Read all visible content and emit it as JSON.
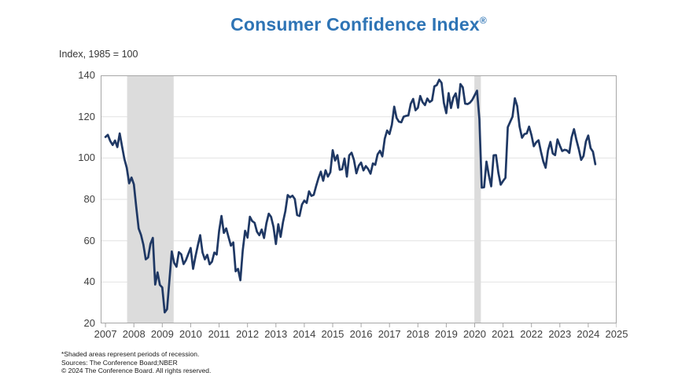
{
  "title": {
    "text": "Consumer Confidence Index",
    "mark": "®"
  },
  "y_axis_note": "Index, 1985 = 100",
  "footnotes": [
    "*Shaded areas represent periods of recession.",
    "Sources: The Conference Board;NBER",
    "© 2024 The Conference Board. All rights reserved."
  ],
  "chart_data": {
    "type": "line",
    "title": "Consumer Confidence Index®",
    "xlabel": "",
    "ylabel": "Index, 1985 = 100",
    "xlim": [
      2006.83,
      2025.0
    ],
    "ylim": [
      20,
      140
    ],
    "y_ticks": [
      140,
      120,
      100,
      80,
      60,
      40,
      20
    ],
    "x_ticks": [
      2007,
      2008,
      2009,
      2010,
      2011,
      2012,
      2013,
      2014,
      2015,
      2016,
      2017,
      2018,
      2019,
      2020,
      2021,
      2022,
      2023,
      2024,
      2025
    ],
    "grid": true,
    "legend_position": "none",
    "colors": {
      "line": "#1F3864",
      "band": "#DCDCDC",
      "grid": "#E2E2E2",
      "border": "#A6A6A6",
      "title": "#2E74B5",
      "tick_text": "#3F3F3F"
    },
    "recession_bands": [
      {
        "label": "2008-09 recession",
        "start": 2007.76,
        "end": 2009.4
      },
      {
        "label": "2020 recession",
        "start": 2019.99,
        "end": 2020.22
      }
    ],
    "series": [
      {
        "name": "Consumer Confidence Index",
        "frequency": "monthly",
        "start_year": 2007,
        "start_month": 1,
        "end_label": "2024-04",
        "values": [
          110.2,
          111.2,
          108.2,
          106.3,
          108.5,
          105.3,
          111.9,
          105.6,
          99.5,
          95.2,
          87.8,
          90.6,
          87.3,
          76.4,
          65.9,
          62.8,
          58.1,
          51.0,
          51.9,
          58.5,
          61.4,
          38.8,
          44.7,
          38.6,
          37.4,
          25.3,
          26.9,
          40.8,
          54.8,
          49.3,
          47.4,
          54.5,
          53.4,
          48.7,
          50.6,
          53.6,
          56.5,
          46.4,
          52.3,
          57.7,
          62.7,
          54.3,
          51.0,
          53.2,
          48.6,
          49.9,
          54.3,
          53.3,
          64.8,
          72.0,
          63.8,
          66.0,
          61.7,
          57.6,
          59.2,
          45.2,
          46.4,
          40.9,
          55.2,
          64.8,
          61.5,
          71.6,
          69.5,
          68.7,
          64.4,
          62.7,
          65.4,
          61.3,
          68.4,
          73.1,
          71.5,
          66.7,
          58.4,
          68.0,
          61.9,
          69.0,
          74.3,
          82.1,
          81.0,
          81.8,
          80.2,
          72.4,
          72.0,
          77.5,
          79.4,
          78.3,
          83.9,
          81.7,
          82.2,
          86.4,
          90.3,
          93.4,
          89.0,
          94.1,
          91.0,
          93.1,
          103.8,
          98.8,
          101.4,
          94.3,
          94.6,
          99.8,
          91.0,
          101.3,
          102.6,
          99.1,
          92.6,
          96.3,
          97.8,
          94.0,
          96.1,
          94.7,
          92.4,
          97.4,
          96.7,
          101.8,
          103.5,
          100.8,
          109.4,
          113.3,
          111.6,
          116.1,
          124.9,
          119.4,
          117.6,
          117.3,
          120.0,
          120.4,
          120.6,
          126.2,
          128.6,
          123.1,
          124.3,
          130.0,
          127.0,
          125.6,
          128.8,
          127.1,
          127.9,
          134.7,
          135.3,
          137.9,
          136.4,
          126.6,
          121.7,
          131.4,
          124.2,
          129.2,
          131.3,
          124.3,
          135.8,
          134.2,
          126.3,
          126.1,
          126.8,
          128.2,
          130.4,
          132.6,
          118.8,
          85.7,
          85.9,
          98.3,
          91.7,
          86.3,
          101.3,
          101.4,
          92.9,
          87.1,
          88.9,
          90.4,
          114.9,
          117.5,
          120.0,
          128.9,
          125.1,
          115.2,
          109.8,
          111.6,
          111.9,
          115.2,
          111.1,
          105.7,
          107.6,
          108.6,
          103.2,
          98.4,
          95.3,
          103.6,
          107.8,
          102.2,
          101.4,
          109.0,
          106.0,
          103.4,
          104.0,
          103.7,
          102.5,
          110.1,
          114.0,
          108.7,
          104.3,
          99.1,
          101.0,
          108.0,
          110.9,
          104.8,
          103.1,
          97.0
        ]
      }
    ]
  }
}
